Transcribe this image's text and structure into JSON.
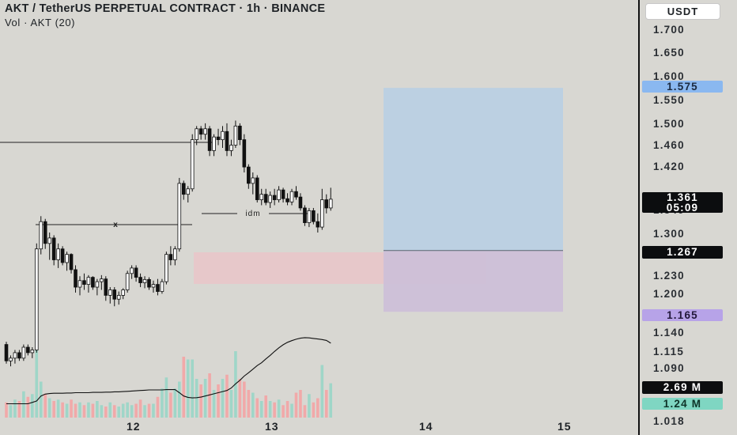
{
  "header": {
    "title": "AKT / TetherUS PERPETUAL CONTRACT · 1h · BINANCE",
    "volume_label": "Vol · AKT (20)"
  },
  "currency_button": "USDT",
  "y_axis": {
    "ticks": [
      "1.700",
      "1.650",
      "1.600",
      "1.550",
      "1.500",
      "1.460",
      "1.420",
      "1.380",
      "1.340",
      "1.300",
      "1.230",
      "1.200",
      "1.140",
      "1.115",
      "1.090",
      "1.018"
    ],
    "price_tags": {
      "target": "1.575",
      "current_price": "1.361",
      "countdown": "05:09",
      "entry": "1.267",
      "stop": "1.165",
      "volume_ma": "2.69 M",
      "volume": "1.24 M"
    }
  },
  "x_axis": {
    "ticks": [
      "12",
      "13",
      "14",
      "15"
    ]
  },
  "annotations": {
    "sweep_label": "x",
    "idm_label": "idm"
  },
  "colors": {
    "background": "#d8d7d2",
    "up_candle": "#ffffff",
    "down_candle": "#111111",
    "volume_up": "#9fd6c8",
    "volume_down": "#f1a9a9",
    "target_zone": "#bcd0e2",
    "stop_zone": "#cdbfd8",
    "order_block": "#e7c8ca",
    "target_tag": "#8ab8f0",
    "stop_tag": "#b7a3e8",
    "volume_tag": "#7fd6c2"
  },
  "chart_data": {
    "type": "candlestick",
    "x_ticks": [
      "12",
      "13",
      "14",
      "15"
    ],
    "y_range": [
      1.018,
      1.72
    ],
    "candles": [
      [
        1.095,
        1.1,
        1.06,
        1.065
      ],
      [
        1.065,
        1.075,
        1.055,
        1.07
      ],
      [
        1.07,
        1.085,
        1.06,
        1.08
      ],
      [
        1.08,
        1.085,
        1.065,
        1.07
      ],
      [
        1.07,
        1.095,
        1.065,
        1.09
      ],
      [
        1.09,
        1.095,
        1.075,
        1.08
      ],
      [
        1.08,
        1.09,
        1.07,
        1.085
      ],
      [
        1.085,
        1.28,
        1.08,
        1.27
      ],
      [
        1.27,
        1.33,
        1.26,
        1.32
      ],
      [
        1.32,
        1.325,
        1.27,
        1.28
      ],
      [
        1.28,
        1.3,
        1.25,
        1.29
      ],
      [
        1.29,
        1.295,
        1.24,
        1.25
      ],
      [
        1.25,
        1.28,
        1.235,
        1.27
      ],
      [
        1.27,
        1.275,
        1.24,
        1.245
      ],
      [
        1.245,
        1.265,
        1.23,
        1.26
      ],
      [
        1.26,
        1.262,
        1.225,
        1.232
      ],
      [
        1.232,
        1.24,
        1.19,
        1.2
      ],
      [
        1.2,
        1.22,
        1.185,
        1.212
      ],
      [
        1.212,
        1.225,
        1.195,
        1.205
      ],
      [
        1.205,
        1.222,
        1.19,
        1.218
      ],
      [
        1.218,
        1.22,
        1.195,
        1.2
      ],
      [
        1.2,
        1.215,
        1.185,
        1.21
      ],
      [
        1.21,
        1.222,
        1.195,
        1.215
      ],
      [
        1.215,
        1.22,
        1.175,
        1.185
      ],
      [
        1.185,
        1.2,
        1.17,
        1.195
      ],
      [
        1.195,
        1.2,
        1.165,
        1.178
      ],
      [
        1.178,
        1.192,
        1.168,
        1.185
      ],
      [
        1.185,
        1.198,
        1.178,
        1.195
      ],
      [
        1.195,
        1.23,
        1.19,
        1.225
      ],
      [
        1.225,
        1.24,
        1.215,
        1.235
      ],
      [
        1.235,
        1.24,
        1.21,
        1.218
      ],
      [
        1.218,
        1.225,
        1.2,
        1.208
      ],
      [
        1.208,
        1.22,
        1.198,
        1.214
      ],
      [
        1.214,
        1.218,
        1.195,
        1.2
      ],
      [
        1.2,
        1.212,
        1.19,
        1.205
      ],
      [
        1.205,
        1.215,
        1.185,
        1.192
      ],
      [
        1.192,
        1.215,
        1.188,
        1.21
      ],
      [
        1.21,
        1.265,
        1.205,
        1.26
      ],
      [
        1.26,
        1.275,
        1.24,
        1.25
      ],
      [
        1.25,
        1.275,
        1.24,
        1.27
      ],
      [
        1.27,
        1.4,
        1.265,
        1.39
      ],
      [
        1.39,
        1.395,
        1.36,
        1.37
      ],
      [
        1.37,
        1.385,
        1.355,
        1.38
      ],
      [
        1.38,
        1.48,
        1.375,
        1.47
      ],
      [
        1.47,
        1.495,
        1.46,
        1.49
      ],
      [
        1.49,
        1.495,
        1.47,
        1.48
      ],
      [
        1.48,
        1.5,
        1.47,
        1.49
      ],
      [
        1.49,
        1.495,
        1.44,
        1.45
      ],
      [
        1.45,
        1.48,
        1.44,
        1.475
      ],
      [
        1.475,
        1.49,
        1.46,
        1.47
      ],
      [
        1.47,
        1.495,
        1.455,
        1.485
      ],
      [
        1.485,
        1.5,
        1.44,
        1.45
      ],
      [
        1.45,
        1.47,
        1.44,
        1.46
      ],
      [
        1.46,
        1.505,
        1.455,
        1.495
      ],
      [
        1.495,
        1.5,
        1.46,
        1.47
      ],
      [
        1.47,
        1.48,
        1.41,
        1.42
      ],
      [
        1.42,
        1.425,
        1.38,
        1.39
      ],
      [
        1.39,
        1.41,
        1.37,
        1.4
      ],
      [
        1.4,
        1.405,
        1.355,
        1.36
      ],
      [
        1.36,
        1.38,
        1.35,
        1.37
      ],
      [
        1.37,
        1.38,
        1.35,
        1.355
      ],
      [
        1.355,
        1.375,
        1.345,
        1.368
      ],
      [
        1.368,
        1.38,
        1.35,
        1.36
      ],
      [
        1.36,
        1.385,
        1.355,
        1.378
      ],
      [
        1.378,
        1.382,
        1.355,
        1.362
      ],
      [
        1.362,
        1.372,
        1.35,
        1.356
      ],
      [
        1.356,
        1.38,
        1.35,
        1.375
      ],
      [
        1.375,
        1.385,
        1.36,
        1.365
      ],
      [
        1.365,
        1.372,
        1.34,
        1.345
      ],
      [
        1.345,
        1.35,
        1.312,
        1.318
      ],
      [
        1.318,
        1.345,
        1.31,
        1.34
      ],
      [
        1.34,
        1.345,
        1.315,
        1.32
      ],
      [
        1.32,
        1.335,
        1.3,
        1.31
      ],
      [
        1.31,
        1.38,
        1.305,
        1.36
      ],
      [
        1.36,
        1.37,
        1.335,
        1.345
      ],
      [
        1.345,
        1.382,
        1.34,
        1.361
      ]
    ],
    "volume": [
      0.55,
      0.45,
      0.65,
      0.6,
      0.95,
      0.75,
      0.85,
      2.5,
      1.3,
      0.85,
      0.7,
      0.6,
      0.65,
      0.55,
      0.5,
      0.65,
      0.5,
      0.55,
      0.45,
      0.55,
      0.5,
      0.6,
      0.45,
      0.4,
      0.55,
      0.45,
      0.4,
      0.5,
      0.55,
      0.45,
      0.5,
      0.65,
      0.45,
      0.5,
      0.5,
      0.75,
      1.05,
      1.45,
      0.9,
      1.05,
      1.3,
      2.2,
      2.1,
      2.1,
      1.4,
      1.2,
      1.4,
      1.6,
      1.0,
      1.2,
      1.4,
      1.55,
      1.0,
      2.4,
      1.4,
      1.3,
      1.0,
      0.9,
      0.7,
      0.6,
      0.8,
      0.6,
      0.55,
      0.65,
      0.45,
      0.6,
      0.5,
      0.9,
      1.0,
      0.45,
      0.85,
      0.55,
      0.7,
      1.9,
      1.0,
      1.24
    ],
    "volume_ma": [
      0.5,
      0.5,
      0.5,
      0.5,
      0.5,
      0.5,
      0.55,
      0.6,
      0.78,
      0.85,
      0.87,
      0.88,
      0.88,
      0.88,
      0.89,
      0.89,
      0.9,
      0.9,
      0.9,
      0.9,
      0.91,
      0.91,
      0.91,
      0.92,
      0.92,
      0.93,
      0.93,
      0.94,
      0.95,
      0.96,
      0.97,
      0.98,
      0.99,
      1.0,
      1.0,
      1.0,
      1.0,
      1.01,
      1.01,
      1.01,
      0.9,
      0.78,
      0.73,
      0.71,
      0.72,
      0.74,
      0.78,
      0.82,
      0.86,
      0.9,
      0.94,
      0.98,
      1.07,
      1.22,
      1.35,
      1.5,
      1.62,
      1.75,
      1.88,
      1.98,
      2.12,
      2.25,
      2.39,
      2.52,
      2.63,
      2.72,
      2.78,
      2.83,
      2.87,
      2.89,
      2.88,
      2.86,
      2.84,
      2.82,
      2.79,
      2.69
    ],
    "levels": {
      "target": 1.575,
      "entry": 1.267,
      "stop": 1.165
    }
  }
}
